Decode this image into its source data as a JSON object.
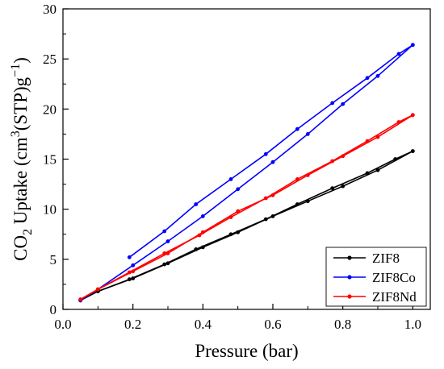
{
  "chart_data": {
    "type": "line",
    "xlabel": "Pressure (bar)",
    "ylabel": {
      "prefix": "CO",
      "sub": "2",
      "middle": " Uptake (cm",
      "sup": "3",
      "suffix": "(STP)g",
      "sup2": "−1",
      "close": ")"
    },
    "xlim": [
      0.0,
      1.05
    ],
    "ylim": [
      0,
      30
    ],
    "xticks": [
      "0.0",
      "0.2",
      "0.4",
      "0.6",
      "0.8",
      "1.0"
    ],
    "yticks": [
      "0",
      "5",
      "10",
      "15",
      "20",
      "25",
      "30"
    ],
    "grid": false,
    "legend_position": "bottom-right",
    "series": [
      {
        "name": "ZIF8",
        "color": "#000000",
        "adsorption": [
          [
            0.05,
            0.9
          ],
          [
            0.1,
            1.8
          ],
          [
            0.2,
            3.1
          ],
          [
            0.3,
            4.6
          ],
          [
            0.4,
            6.2
          ],
          [
            0.5,
            7.7
          ],
          [
            0.6,
            9.3
          ],
          [
            0.7,
            10.8
          ],
          [
            0.8,
            12.3
          ],
          [
            0.9,
            13.9
          ],
          [
            1.0,
            15.8
          ]
        ],
        "desorption": [
          [
            1.0,
            15.8
          ],
          [
            0.95,
            15.0
          ],
          [
            0.87,
            13.6
          ],
          [
            0.77,
            12.1
          ],
          [
            0.67,
            10.5
          ],
          [
            0.58,
            9.0
          ],
          [
            0.48,
            7.5
          ],
          [
            0.38,
            6.0
          ],
          [
            0.29,
            4.5
          ],
          [
            0.19,
            3.0
          ],
          [
            0.1,
            1.8
          ],
          [
            0.05,
            0.9
          ]
        ]
      },
      {
        "name": "ZIF8Co",
        "color": "#0000ff",
        "adsorption": [
          [
            0.05,
            0.9
          ],
          [
            0.1,
            2.0
          ],
          [
            0.2,
            4.4
          ],
          [
            0.3,
            6.8
          ],
          [
            0.4,
            9.3
          ],
          [
            0.5,
            12.0
          ],
          [
            0.6,
            14.7
          ],
          [
            0.7,
            17.5
          ],
          [
            0.8,
            20.5
          ],
          [
            0.9,
            23.3
          ],
          [
            1.0,
            26.4
          ]
        ],
        "desorption": [
          [
            1.0,
            26.4
          ],
          [
            0.96,
            25.5
          ],
          [
            0.87,
            23.1
          ],
          [
            0.77,
            20.6
          ],
          [
            0.67,
            18.0
          ],
          [
            0.58,
            15.5
          ],
          [
            0.48,
            13.0
          ],
          [
            0.38,
            10.5
          ],
          [
            0.29,
            7.8
          ],
          [
            0.19,
            5.2
          ]
        ]
      },
      {
        "name": "ZIF8Nd",
        "color": "#ff0000",
        "adsorption": [
          [
            0.05,
            1.0
          ],
          [
            0.1,
            2.0
          ],
          [
            0.2,
            3.8
          ],
          [
            0.3,
            5.6
          ],
          [
            0.4,
            7.7
          ],
          [
            0.5,
            9.8
          ],
          [
            0.6,
            11.4
          ],
          [
            0.7,
            13.4
          ],
          [
            0.8,
            15.3
          ],
          [
            0.9,
            17.2
          ],
          [
            1.0,
            19.4
          ]
        ],
        "desorption": [
          [
            1.0,
            19.4
          ],
          [
            0.96,
            18.7
          ],
          [
            0.87,
            16.8
          ],
          [
            0.77,
            14.8
          ],
          [
            0.67,
            13.0
          ],
          [
            0.58,
            11.1
          ],
          [
            0.48,
            9.2
          ],
          [
            0.39,
            7.4
          ],
          [
            0.29,
            5.6
          ],
          [
            0.19,
            3.7
          ],
          [
            0.1,
            2.0
          ],
          [
            0.05,
            1.0
          ]
        ]
      }
    ]
  }
}
